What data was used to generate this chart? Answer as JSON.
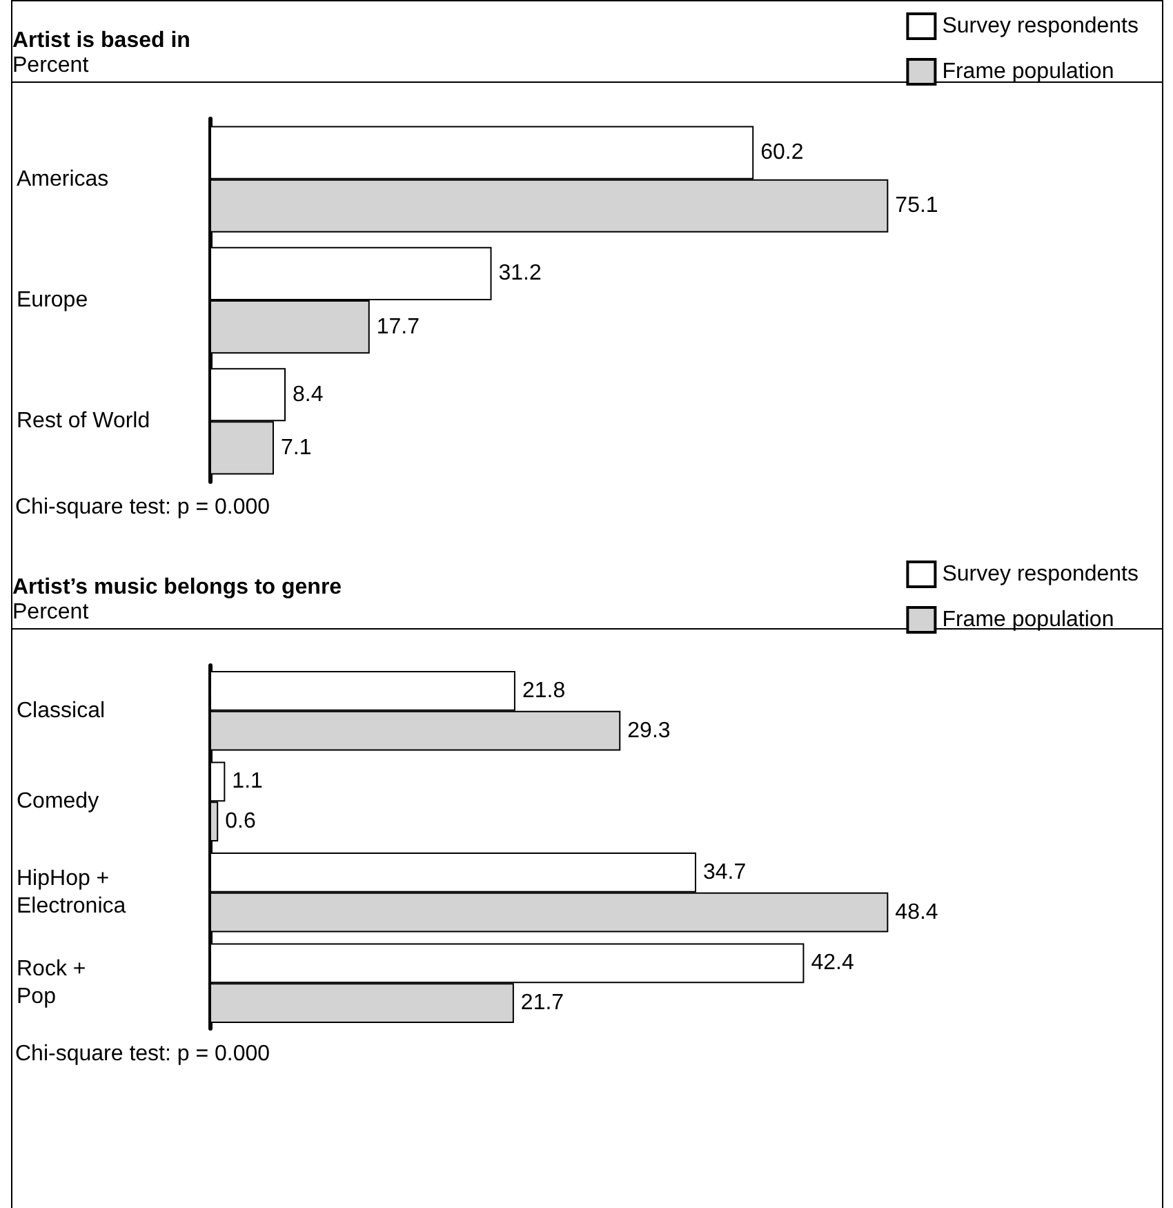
{
  "chart_data": [
    {
      "type": "bar",
      "orientation": "horizontal",
      "title": "Artist is based in",
      "subtitle": "Percent",
      "categories": [
        "Americas",
        "Europe",
        "Rest of World"
      ],
      "series": [
        {
          "name": "Survey respondents",
          "color": "#ffffff",
          "values": [
            60.2,
            31.2,
            8.4
          ]
        },
        {
          "name": "Frame population",
          "color": "#d3d3d3",
          "values": [
            75.1,
            17.7,
            7.1
          ]
        }
      ],
      "data_labels": true,
      "legend": "top right",
      "annotations": [
        "Chi-square test: p = 0.000"
      ]
    },
    {
      "type": "bar",
      "orientation": "horizontal",
      "title": "Artist’s music belongs to genre",
      "subtitle": "Percent",
      "categories": [
        "Classical",
        "Comedy",
        "HipHop +\nElectronica",
        "Rock +\nPop"
      ],
      "series": [
        {
          "name": "Survey respondents",
          "color": "#ffffff",
          "values": [
            21.8,
            1.1,
            34.7,
            42.4
          ]
        },
        {
          "name": "Frame population",
          "color": "#d3d3d3",
          "values": [
            29.3,
            0.6,
            48.4,
            21.7
          ]
        }
      ],
      "data_labels": true,
      "legend": "top right",
      "annotations": [
        "Chi-square test: p = 0.000"
      ]
    }
  ]
}
